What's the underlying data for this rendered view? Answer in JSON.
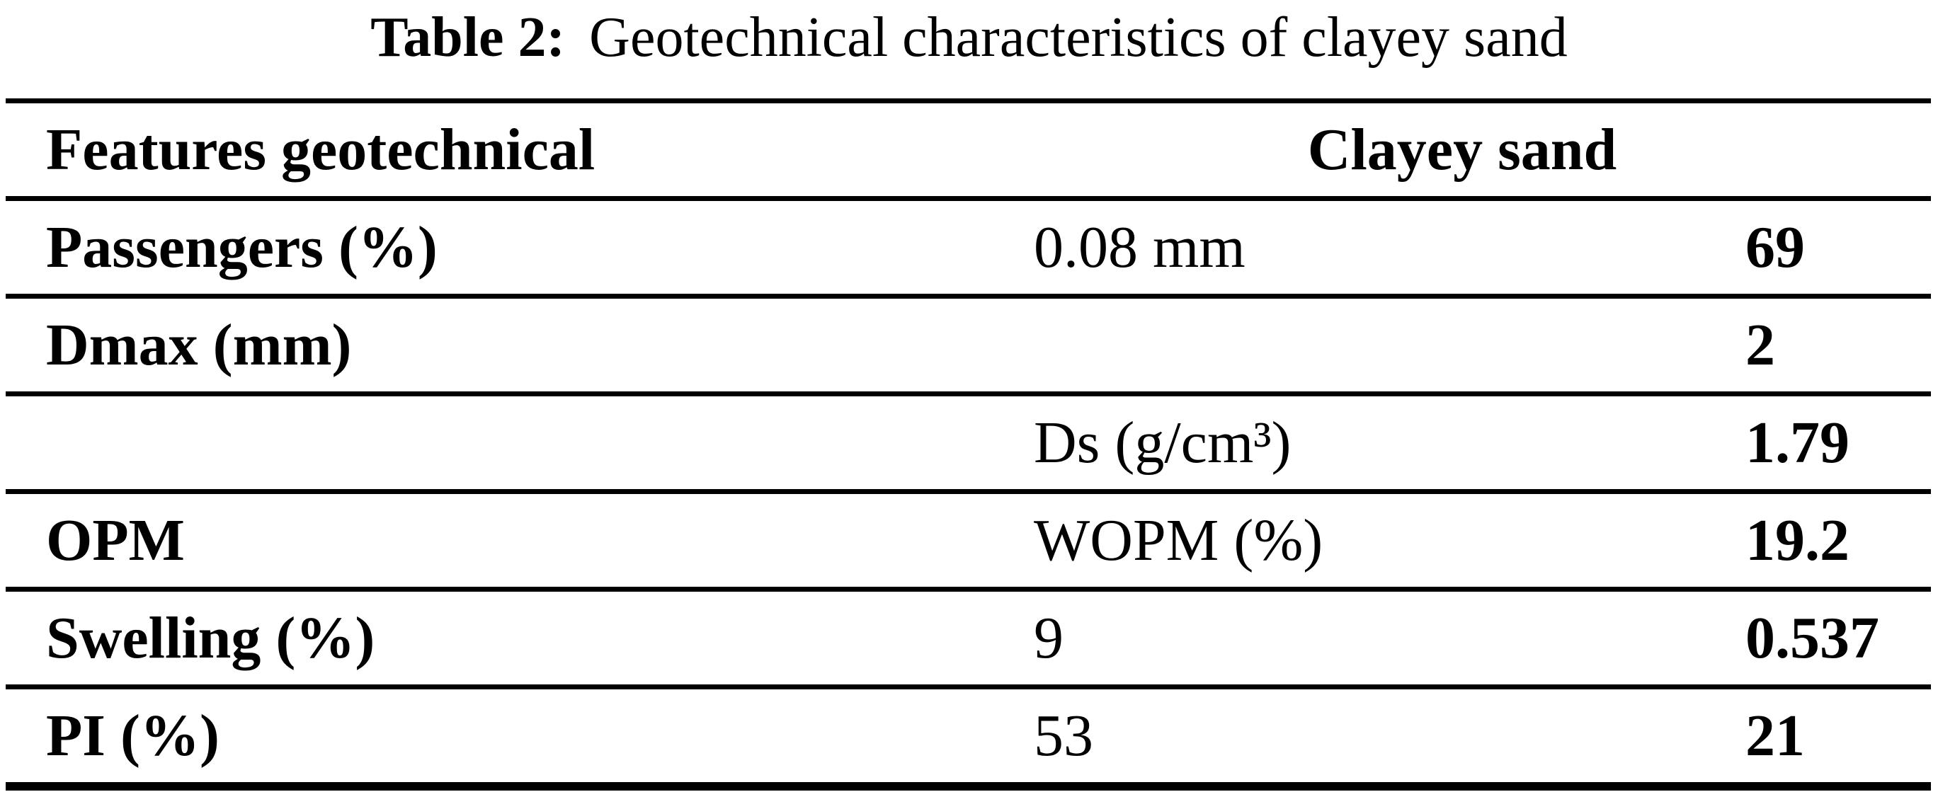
{
  "page": {
    "background_color": "#ffffff",
    "text_color": "#000000"
  },
  "caption": {
    "label": "Table 2:",
    "text": "Geotechnical characteristics of clayey sand"
  },
  "table": {
    "header": {
      "feature_col": "Features geotechnical",
      "group_col": "Clayey sand"
    },
    "rows": [
      {
        "feature": "Passengers (%)",
        "detail": "0.08 mm",
        "value": "69"
      },
      {
        "feature": "Dmax (mm)",
        "detail": "",
        "value": "2"
      },
      {
        "feature": "",
        "detail": "Ds (g/cm³)",
        "value": "1.79"
      },
      {
        "feature": "OPM",
        "detail": "WOPM (%)",
        "value": "19.2"
      },
      {
        "feature": "Swelling (%)",
        "detail": "9",
        "value": "0.537"
      },
      {
        "feature": "PI (%)",
        "detail": "53",
        "value": "21"
      }
    ]
  }
}
